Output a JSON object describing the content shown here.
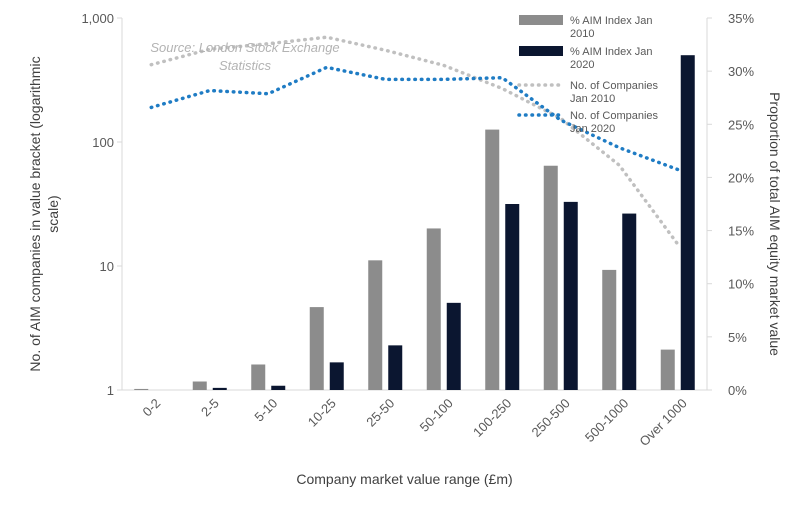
{
  "chart_data": {
    "type": "bar",
    "categories": [
      "0-2",
      "2-5",
      "5-10",
      "10-25",
      "25-50",
      "50-100",
      "100-250",
      "250-500",
      "500-1000",
      "Over 1000"
    ],
    "series": [
      {
        "name": "% AIM Index Jan 2010",
        "chart": "bar",
        "axis": "right",
        "color": "#8c8c8c",
        "values": [
          0.1,
          0.8,
          2.4,
          7.8,
          12.2,
          15.2,
          24.5,
          21.1,
          11.3,
          3.8
        ]
      },
      {
        "name": "% AIM Index Jan 2020",
        "chart": "bar",
        "axis": "right",
        "color": "#0b1630",
        "values": [
          0.0,
          0.2,
          0.4,
          2.6,
          4.2,
          8.2,
          17.5,
          17.7,
          16.6,
          31.5
        ]
      },
      {
        "name": "No. of Companies Jan 2010",
        "chart": "line",
        "axis": "left",
        "style": "dotted",
        "color": "#c0c0c0",
        "values": [
          420,
          560,
          620,
          700,
          550,
          415,
          270,
          155,
          65,
          15
        ]
      },
      {
        "name": "No. of Companies Jan 2020",
        "chart": "line",
        "axis": "left",
        "style": "dotted",
        "color": "#1f7cc4",
        "values": [
          190,
          260,
          245,
          400,
          320,
          320,
          330,
          150,
          90,
          60
        ]
      }
    ],
    "annotation": "Source: London Stock Exchange Statistics",
    "annotation_lines": [
      "Source: London Stock Exchange",
      "Statistics"
    ],
    "xlabel": "Company market value range (£m)",
    "ylabel_left": "No. of AIM companies in value bracket (logarithmic scale)",
    "ylabel_left_lines": [
      "No. of AIM companies in value bracket (logarithmic",
      "scale)"
    ],
    "ylabel_right": "Proportion of total AIM equity market value",
    "yscale_left": "log",
    "ylim_left": [
      1,
      1000
    ],
    "yticks_left": [
      1,
      10,
      100,
      1000
    ],
    "ytick_labels_left": [
      "1",
      "10",
      "100",
      "1,000"
    ],
    "ylim_right": [
      0,
      35
    ],
    "yticks_right": [
      0,
      5,
      10,
      15,
      20,
      25,
      30,
      35
    ],
    "ytick_labels_right": [
      "0%",
      "5%",
      "10%",
      "15%",
      "20%",
      "25%",
      "30%",
      "35%"
    ],
    "legend_position": "top-right",
    "legend_lines": [
      [
        "% AIM Index Jan",
        "2010"
      ],
      [
        "% AIM Index Jan",
        "2020"
      ],
      [
        "No. of Companies",
        "Jan 2010"
      ],
      [
        "No. of Companies",
        "Jan 2020"
      ]
    ],
    "grid": false
  }
}
